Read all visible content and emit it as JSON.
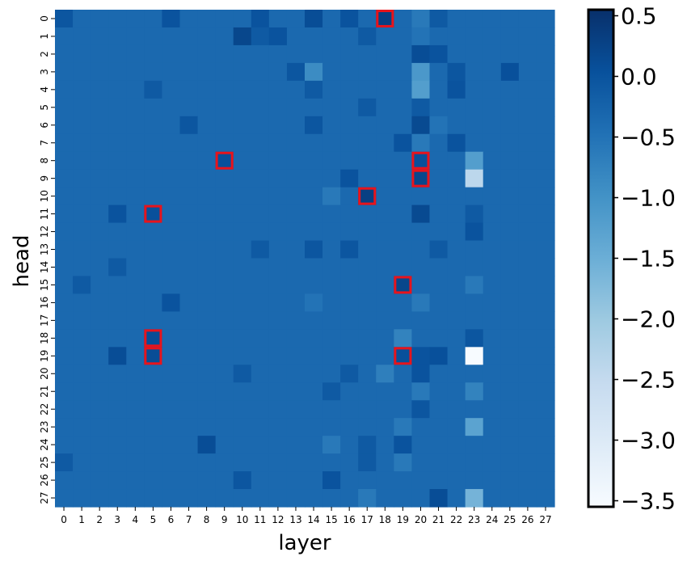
{
  "chart_data": {
    "type": "heatmap",
    "xlabel": "layer",
    "ylabel": "head",
    "x_ticks": [
      "0",
      "1",
      "2",
      "3",
      "4",
      "5",
      "6",
      "7",
      "8",
      "9",
      "10",
      "11",
      "12",
      "13",
      "14",
      "15",
      "16",
      "17",
      "18",
      "19",
      "20",
      "21",
      "22",
      "23",
      "24",
      "25",
      "26",
      "27"
    ],
    "y_ticks": [
      "0",
      "1",
      "2",
      "3",
      "4",
      "5",
      "6",
      "7",
      "8",
      "9",
      "10",
      "11",
      "12",
      "13",
      "14",
      "15",
      "16",
      "17",
      "18",
      "19",
      "20",
      "21",
      "22",
      "23",
      "24",
      "25",
      "26",
      "27"
    ],
    "colormap": "Blues",
    "vmin": -3.55,
    "vmax": 0.55,
    "colorbar_ticks": [
      0.5,
      0.0,
      -0.5,
      -1.0,
      -1.5,
      -2.0,
      -2.5,
      -3.0,
      -3.5
    ],
    "colorbar_tick_labels": [
      "0.5",
      "0.0",
      "−0.5",
      "−1.0",
      "−1.5",
      "−2.0",
      "−2.5",
      "−3.0",
      "−3.5"
    ],
    "base_value": -0.35,
    "cell_overrides": [
      {
        "head": 0,
        "layer": 0,
        "value": -0.05
      },
      {
        "head": 0,
        "layer": 6,
        "value": 0.0
      },
      {
        "head": 0,
        "layer": 11,
        "value": 0.0
      },
      {
        "head": 0,
        "layer": 14,
        "value": 0.1
      },
      {
        "head": 0,
        "layer": 16,
        "value": 0.0
      },
      {
        "head": 0,
        "layer": 18,
        "value": 0.3
      },
      {
        "head": 0,
        "layer": 20,
        "value": -0.6
      },
      {
        "head": 0,
        "layer": 21,
        "value": -0.1
      },
      {
        "head": 1,
        "layer": 10,
        "value": 0.2
      },
      {
        "head": 1,
        "layer": 11,
        "value": -0.1
      },
      {
        "head": 1,
        "layer": 12,
        "value": 0.0
      },
      {
        "head": 1,
        "layer": 17,
        "value": -0.1
      },
      {
        "head": 1,
        "layer": 20,
        "value": -0.5
      },
      {
        "head": 2,
        "layer": 20,
        "value": 0.1
      },
      {
        "head": 2,
        "layer": 21,
        "value": 0.0
      },
      {
        "head": 3,
        "layer": 13,
        "value": -0.05
      },
      {
        "head": 3,
        "layer": 14,
        "value": -0.9
      },
      {
        "head": 3,
        "layer": 20,
        "value": -1.1
      },
      {
        "head": 3,
        "layer": 22,
        "value": -0.05
      },
      {
        "head": 3,
        "layer": 25,
        "value": 0.05
      },
      {
        "head": 4,
        "layer": 5,
        "value": -0.1
      },
      {
        "head": 4,
        "layer": 14,
        "value": -0.1
      },
      {
        "head": 4,
        "layer": 20,
        "value": -1.2
      },
      {
        "head": 4,
        "layer": 22,
        "value": 0.0
      },
      {
        "head": 5,
        "layer": 17,
        "value": -0.1
      },
      {
        "head": 5,
        "layer": 20,
        "value": -0.1
      },
      {
        "head": 6,
        "layer": 7,
        "value": -0.05
      },
      {
        "head": 6,
        "layer": 14,
        "value": -0.05
      },
      {
        "head": 6,
        "layer": 20,
        "value": 0.15
      },
      {
        "head": 6,
        "layer": 21,
        "value": -0.5
      },
      {
        "head": 7,
        "layer": 19,
        "value": 0.0
      },
      {
        "head": 7,
        "layer": 20,
        "value": -0.6
      },
      {
        "head": 7,
        "layer": 22,
        "value": 0.0
      },
      {
        "head": 8,
        "layer": 9,
        "value": 0.05
      },
      {
        "head": 8,
        "layer": 20,
        "value": 0.05
      },
      {
        "head": 8,
        "layer": 23,
        "value": -1.2
      },
      {
        "head": 9,
        "layer": 16,
        "value": 0.0
      },
      {
        "head": 9,
        "layer": 20,
        "value": 0.2
      },
      {
        "head": 9,
        "layer": 23,
        "value": -2.4
      },
      {
        "head": 10,
        "layer": 15,
        "value": -0.6
      },
      {
        "head": 10,
        "layer": 17,
        "value": 0.3
      },
      {
        "head": 11,
        "layer": 3,
        "value": 0.0
      },
      {
        "head": 11,
        "layer": 5,
        "value": 0.05
      },
      {
        "head": 11,
        "layer": 20,
        "value": 0.15
      },
      {
        "head": 11,
        "layer": 23,
        "value": -0.1
      },
      {
        "head": 12,
        "layer": 23,
        "value": 0.0
      },
      {
        "head": 13,
        "layer": 11,
        "value": -0.1
      },
      {
        "head": 13,
        "layer": 14,
        "value": -0.05
      },
      {
        "head": 13,
        "layer": 16,
        "value": -0.05
      },
      {
        "head": 13,
        "layer": 21,
        "value": -0.1
      },
      {
        "head": 14,
        "layer": 3,
        "value": -0.1
      },
      {
        "head": 15,
        "layer": 1,
        "value": -0.1
      },
      {
        "head": 15,
        "layer": 19,
        "value": 0.2
      },
      {
        "head": 15,
        "layer": 23,
        "value": -0.6
      },
      {
        "head": 16,
        "layer": 6,
        "value": 0.0
      },
      {
        "head": 16,
        "layer": 14,
        "value": -0.5
      },
      {
        "head": 16,
        "layer": 20,
        "value": -0.6
      },
      {
        "head": 18,
        "layer": 5,
        "value": 0.1
      },
      {
        "head": 18,
        "layer": 19,
        "value": -0.75
      },
      {
        "head": 18,
        "layer": 23,
        "value": -0.05
      },
      {
        "head": 19,
        "layer": 3,
        "value": 0.1
      },
      {
        "head": 19,
        "layer": 5,
        "value": 0.1
      },
      {
        "head": 19,
        "layer": 19,
        "value": 0.05
      },
      {
        "head": 19,
        "layer": 20,
        "value": 0.0
      },
      {
        "head": 19,
        "layer": 21,
        "value": 0.05
      },
      {
        "head": 19,
        "layer": 23,
        "value": -3.55
      },
      {
        "head": 20,
        "layer": 10,
        "value": -0.1
      },
      {
        "head": 20,
        "layer": 16,
        "value": -0.1
      },
      {
        "head": 20,
        "layer": 18,
        "value": -0.7
      },
      {
        "head": 20,
        "layer": 20,
        "value": 0.0
      },
      {
        "head": 21,
        "layer": 15,
        "value": -0.1
      },
      {
        "head": 21,
        "layer": 20,
        "value": -0.6
      },
      {
        "head": 21,
        "layer": 23,
        "value": -0.75
      },
      {
        "head": 22,
        "layer": 20,
        "value": -0.05
      },
      {
        "head": 23,
        "layer": 19,
        "value": -0.6
      },
      {
        "head": 23,
        "layer": 23,
        "value": -1.3
      },
      {
        "head": 24,
        "layer": 8,
        "value": 0.1
      },
      {
        "head": 24,
        "layer": 15,
        "value": -0.6
      },
      {
        "head": 24,
        "layer": 17,
        "value": -0.1
      },
      {
        "head": 24,
        "layer": 19,
        "value": 0.0
      },
      {
        "head": 25,
        "layer": 0,
        "value": -0.1
      },
      {
        "head": 25,
        "layer": 17,
        "value": -0.1
      },
      {
        "head": 25,
        "layer": 19,
        "value": -0.6
      },
      {
        "head": 26,
        "layer": 10,
        "value": -0.05
      },
      {
        "head": 26,
        "layer": 15,
        "value": 0.0
      },
      {
        "head": 27,
        "layer": 17,
        "value": -0.6
      },
      {
        "head": 27,
        "layer": 21,
        "value": 0.1
      },
      {
        "head": 27,
        "layer": 23,
        "value": -1.6
      }
    ],
    "highlighted_cells": [
      {
        "head": 0,
        "layer": 18
      },
      {
        "head": 8,
        "layer": 9
      },
      {
        "head": 8,
        "layer": 20
      },
      {
        "head": 9,
        "layer": 20
      },
      {
        "head": 10,
        "layer": 17
      },
      {
        "head": 11,
        "layer": 5
      },
      {
        "head": 15,
        "layer": 19
      },
      {
        "head": 18,
        "layer": 5
      },
      {
        "head": 19,
        "layer": 5
      },
      {
        "head": 19,
        "layer": 19
      }
    ],
    "highlight_color": "#e8141c",
    "colorbar_border_color": "#000000"
  }
}
